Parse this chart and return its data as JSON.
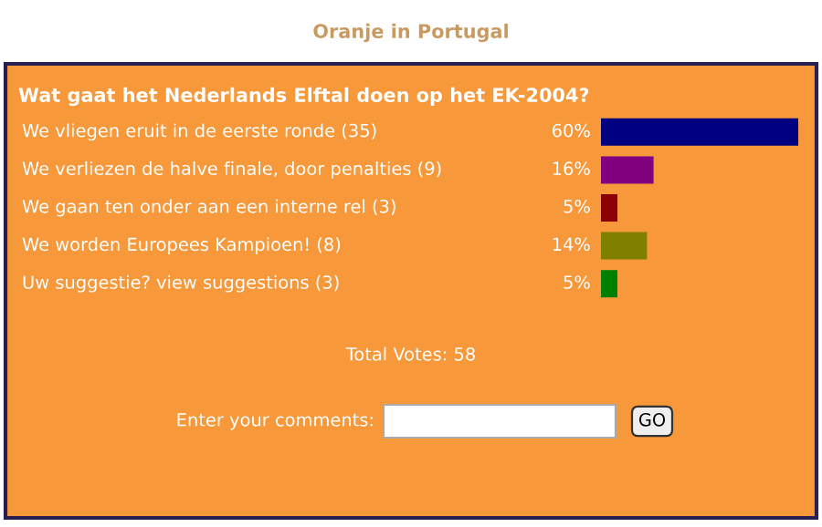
{
  "chart_data": {
    "type": "bar",
    "orientation": "horizontal",
    "title": "Oranje in Portugal",
    "subtitle": "Wat gaat het Nederlands Elftal doen op het EK-2004?",
    "categories": [
      "We vliegen eruit in de eerste ronde (35)",
      "We verliezen de halve finale, door penalties (9)",
      "We gaan ten onder aan een interne rel (3)",
      "We worden Europees Kampioen! (8)",
      "Uw suggestie? view suggestions (3)"
    ],
    "values": [
      60,
      16,
      5,
      14,
      5
    ],
    "colors": [
      "#000080",
      "#800080",
      "#8b0000",
      "#808000",
      "#008000"
    ],
    "value_labels": [
      "60%",
      "16%",
      "5%",
      "14%",
      "5%"
    ],
    "xlim": [
      0,
      60
    ],
    "annotations": [
      "Total Votes: 58",
      "Enter your comments:",
      "GO"
    ]
  }
}
